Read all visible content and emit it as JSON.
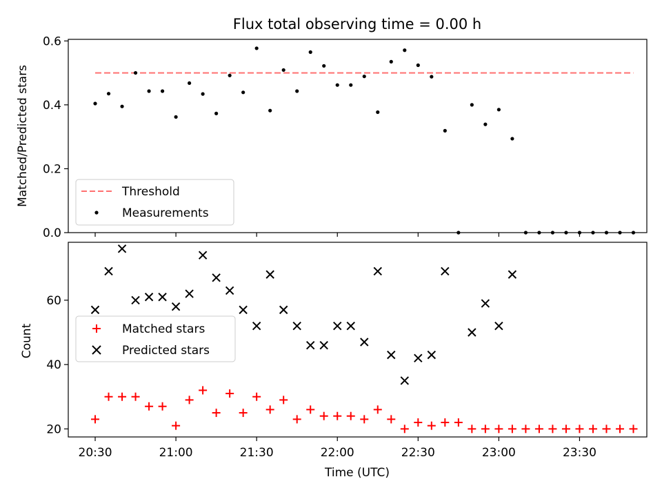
{
  "chart_data": [
    {
      "type": "scatter",
      "title": "Flux total observing time = 0.00 h",
      "xlabel": "",
      "ylabel": "Matched/Predicted stars",
      "ylim": [
        0,
        0.605
      ],
      "xlim": [
        "20:20",
        "23:55"
      ],
      "yticks": [
        {
          "v": 0.0,
          "label": "0.0"
        },
        {
          "v": 0.2,
          "label": "0.2"
        },
        {
          "v": 0.4,
          "label": "0.4"
        },
        {
          "v": 0.6,
          "label": "0.6"
        }
      ],
      "legend": {
        "position": "bottom-left",
        "entries": [
          "Threshold",
          "Measurements"
        ]
      },
      "series": [
        {
          "name": "Threshold",
          "kind": "dashed-line",
          "color": "#ff7070",
          "points": [
            [
              "20:30",
              0.5
            ],
            [
              "23:50",
              0.5
            ]
          ]
        },
        {
          "name": "Measurements",
          "kind": "dot",
          "color": "#000000",
          "points": [
            [
              "20:30",
              0.404
            ],
            [
              "20:35",
              0.435
            ],
            [
              "20:40",
              0.395
            ],
            [
              "20:45",
              0.5
            ],
            [
              "20:50",
              0.443
            ],
            [
              "20:55",
              0.443
            ],
            [
              "21:00",
              0.362
            ],
            [
              "21:05",
              0.468
            ],
            [
              "21:10",
              0.434
            ],
            [
              "21:15",
              0.373
            ],
            [
              "21:20",
              0.492
            ],
            [
              "21:25",
              0.439
            ],
            [
              "21:30",
              0.577
            ],
            [
              "21:35",
              0.382
            ],
            [
              "21:40",
              0.509
            ],
            [
              "21:45",
              0.443
            ],
            [
              "21:50",
              0.565
            ],
            [
              "21:55",
              0.522
            ],
            [
              "22:00",
              0.462
            ],
            [
              "22:05",
              0.462
            ],
            [
              "22:10",
              0.489
            ],
            [
              "22:15",
              0.377
            ],
            [
              "22:20",
              0.535
            ],
            [
              "22:25",
              0.571
            ],
            [
              "22:30",
              0.524
            ],
            [
              "22:35",
              0.488
            ],
            [
              "22:40",
              0.319
            ],
            [
              "22:45",
              0.0
            ],
            [
              "22:50",
              0.4
            ],
            [
              "22:55",
              0.339
            ],
            [
              "23:00",
              0.385
            ],
            [
              "23:05",
              0.294
            ],
            [
              "23:10",
              0.0
            ],
            [
              "23:15",
              0.0
            ],
            [
              "23:20",
              0.0
            ],
            [
              "23:25",
              0.0
            ],
            [
              "23:30",
              0.0
            ],
            [
              "23:35",
              0.0
            ],
            [
              "23:40",
              0.0
            ],
            [
              "23:45",
              0.0
            ],
            [
              "23:50",
              0.0
            ]
          ]
        }
      ]
    },
    {
      "type": "scatter",
      "title": "",
      "xlabel": "Time (UTC)",
      "ylabel": "Count",
      "ylim": [
        17.5,
        78
      ],
      "xlim": [
        "20:20",
        "23:55"
      ],
      "yticks": [
        {
          "v": 20,
          "label": "20"
        },
        {
          "v": 40,
          "label": "40"
        },
        {
          "v": 60,
          "label": "60"
        }
      ],
      "xticks": [
        {
          "t": "20:30",
          "label": "20:30"
        },
        {
          "t": "21:00",
          "label": "21:00"
        },
        {
          "t": "21:30",
          "label": "21:30"
        },
        {
          "t": "22:00",
          "label": "22:00"
        },
        {
          "t": "22:30",
          "label": "22:30"
        },
        {
          "t": "23:00",
          "label": "23:00"
        },
        {
          "t": "23:30",
          "label": "23:30"
        }
      ],
      "legend": {
        "position": "center-left",
        "entries": [
          "Matched stars",
          "Predicted stars"
        ]
      },
      "series": [
        {
          "name": "Matched stars",
          "kind": "plus",
          "color": "#ff0000",
          "points": [
            [
              "20:30",
              23
            ],
            [
              "20:35",
              30
            ],
            [
              "20:40",
              30
            ],
            [
              "20:45",
              30
            ],
            [
              "20:50",
              27
            ],
            [
              "20:55",
              27
            ],
            [
              "21:00",
              21
            ],
            [
              "21:05",
              29
            ],
            [
              "21:10",
              32
            ],
            [
              "21:15",
              25
            ],
            [
              "21:20",
              31
            ],
            [
              "21:25",
              25
            ],
            [
              "21:30",
              30
            ],
            [
              "21:35",
              26
            ],
            [
              "21:40",
              29
            ],
            [
              "21:45",
              23
            ],
            [
              "21:50",
              26
            ],
            [
              "21:55",
              24
            ],
            [
              "22:00",
              24
            ],
            [
              "22:05",
              24
            ],
            [
              "22:10",
              23
            ],
            [
              "22:15",
              26
            ],
            [
              "22:20",
              23
            ],
            [
              "22:25",
              20
            ],
            [
              "22:30",
              22
            ],
            [
              "22:35",
              21
            ],
            [
              "22:40",
              22
            ],
            [
              "22:45",
              22
            ],
            [
              "22:50",
              20
            ],
            [
              "22:55",
              20
            ],
            [
              "23:00",
              20
            ],
            [
              "23:05",
              20
            ],
            [
              "23:10",
              20
            ],
            [
              "23:15",
              20
            ],
            [
              "23:20",
              20
            ],
            [
              "23:25",
              20
            ],
            [
              "23:30",
              20
            ],
            [
              "23:35",
              20
            ],
            [
              "23:40",
              20
            ],
            [
              "23:45",
              20
            ],
            [
              "23:50",
              20
            ]
          ]
        },
        {
          "name": "Predicted stars",
          "kind": "x",
          "color": "#000000",
          "points": [
            [
              "20:30",
              57
            ],
            [
              "20:35",
              69
            ],
            [
              "20:40",
              76
            ],
            [
              "20:45",
              60
            ],
            [
              "20:50",
              61
            ],
            [
              "20:55",
              61
            ],
            [
              "21:00",
              58
            ],
            [
              "21:05",
              62
            ],
            [
              "21:10",
              74
            ],
            [
              "21:15",
              67
            ],
            [
              "21:20",
              63
            ],
            [
              "21:25",
              57
            ],
            [
              "21:30",
              52
            ],
            [
              "21:35",
              68
            ],
            [
              "21:40",
              57
            ],
            [
              "21:45",
              52
            ],
            [
              "21:50",
              46
            ],
            [
              "21:55",
              46
            ],
            [
              "22:00",
              52
            ],
            [
              "22:05",
              52
            ],
            [
              "22:10",
              47
            ],
            [
              "22:15",
              69
            ],
            [
              "22:20",
              43
            ],
            [
              "22:25",
              35
            ],
            [
              "22:30",
              42
            ],
            [
              "22:35",
              43
            ],
            [
              "22:40",
              69
            ],
            [
              "22:50",
              50
            ],
            [
              "22:55",
              59
            ],
            [
              "23:00",
              52
            ],
            [
              "23:05",
              68
            ]
          ]
        }
      ]
    }
  ]
}
